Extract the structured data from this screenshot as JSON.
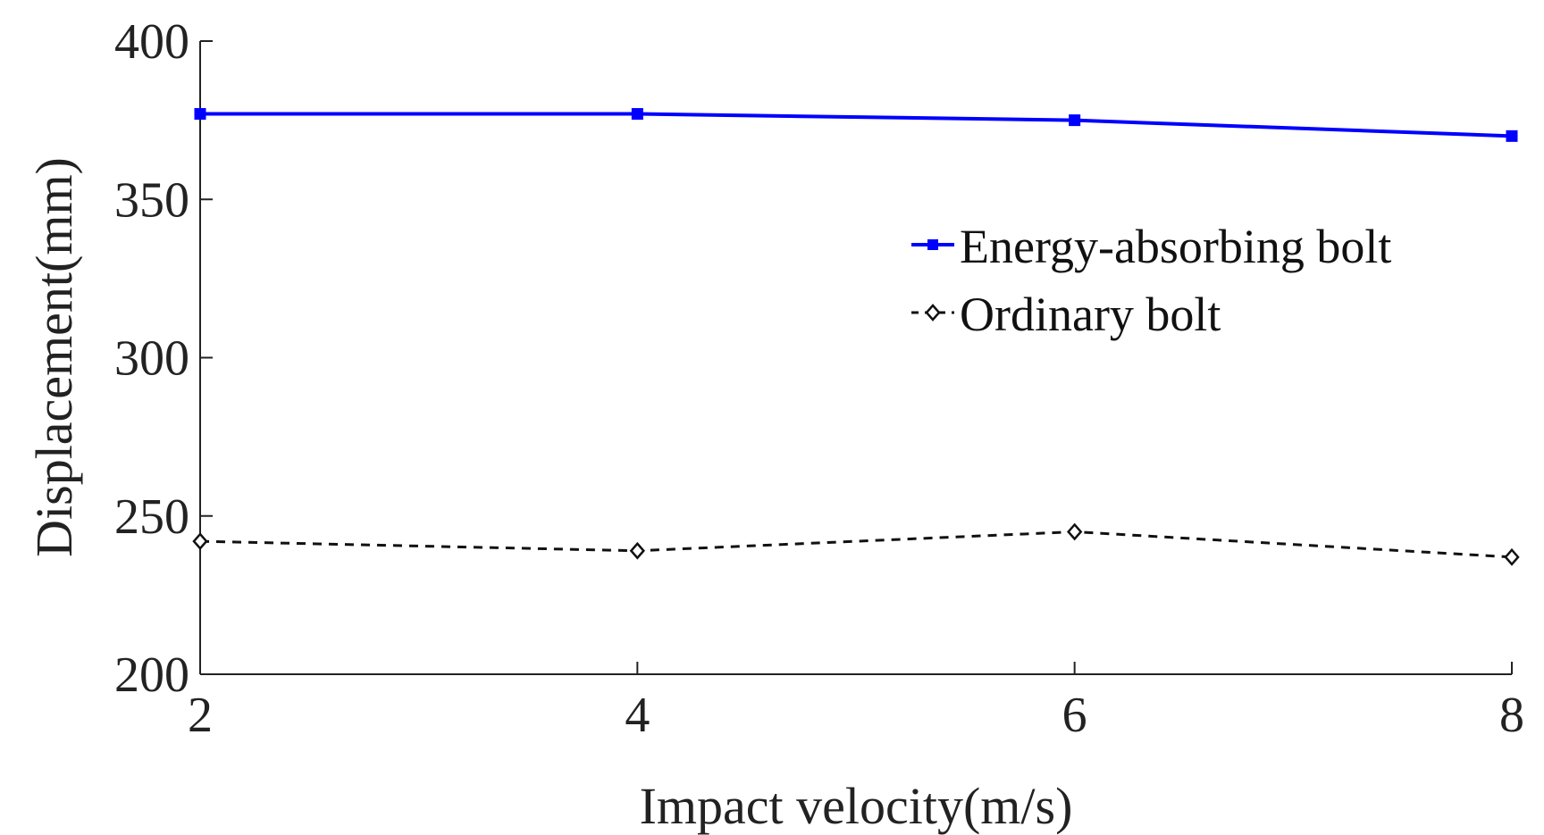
{
  "chart_data": {
    "type": "line",
    "title": "",
    "xlabel": "Impact velocity(m/s)",
    "ylabel": "Displacement(mm)",
    "x": [
      2,
      4,
      6,
      8
    ],
    "xlim": [
      2,
      8
    ],
    "ylim": [
      200,
      400
    ],
    "xticks": [
      "2",
      "4",
      "6",
      "8"
    ],
    "yticks": [
      "200",
      "250",
      "300",
      "350",
      "400"
    ],
    "grid": false,
    "legend_position": "upper-right",
    "series": [
      {
        "name": "Energy-absorbing bolt",
        "values": [
          377,
          377,
          375,
          370
        ],
        "color": "#0000ff",
        "line": "solid",
        "marker": "square"
      },
      {
        "name": "Ordinary bolt",
        "values": [
          242,
          239,
          245,
          237
        ],
        "color": "#111111",
        "line": "dashed",
        "marker": "diamond"
      }
    ]
  }
}
